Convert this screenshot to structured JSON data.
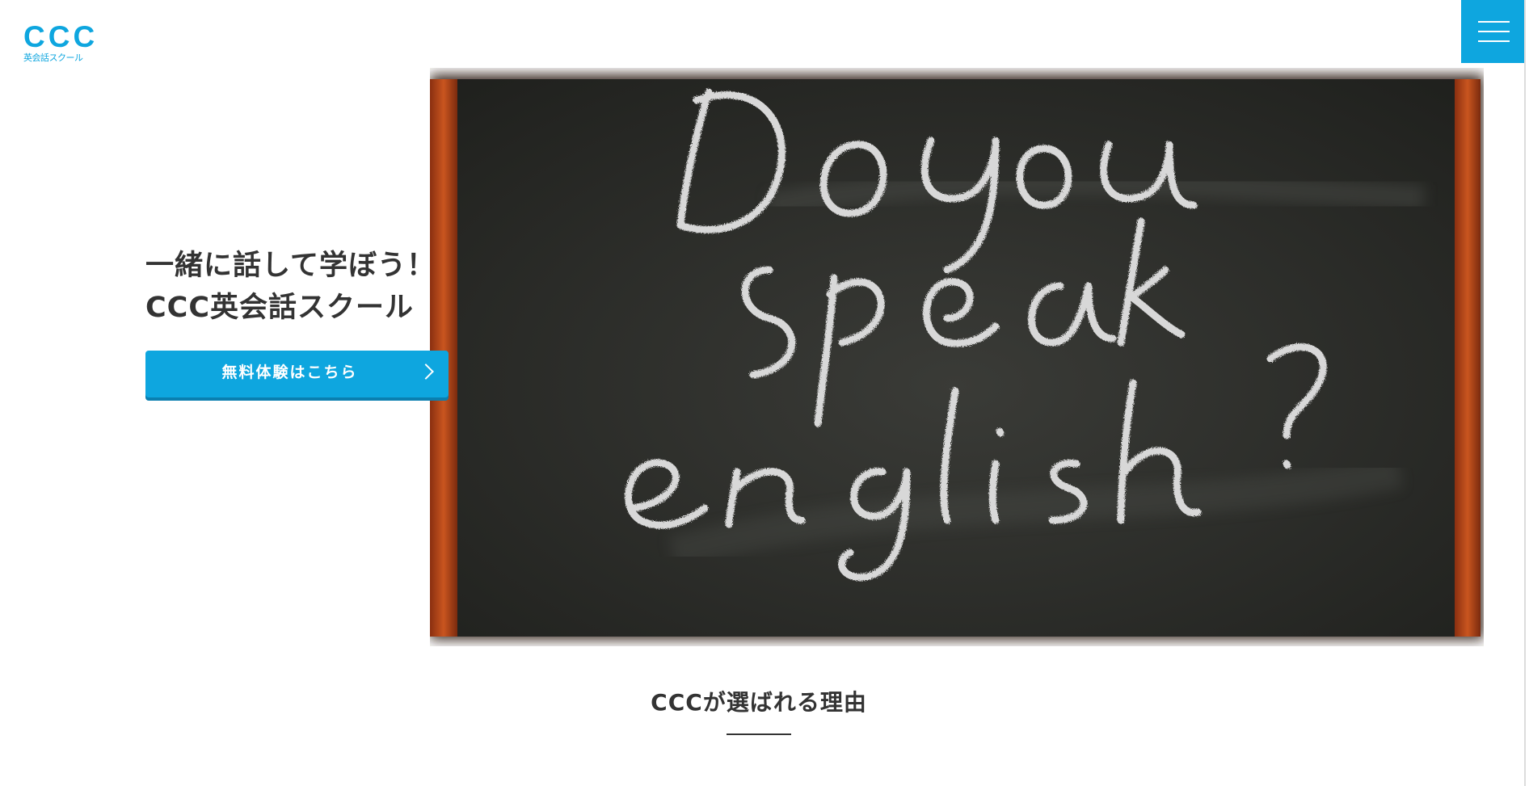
{
  "header": {
    "logo_mark": "CCC",
    "logo_sub": "英会話スクール",
    "menu_icon": "hamburger-icon"
  },
  "hero": {
    "line1": "一緒に話して学ぼう！",
    "line2": "CCC英会話スクール",
    "cta_label": "無料体験はこちら",
    "cta_icon": "chevron-right-icon",
    "image": {
      "description_icon": "chalkboard-image",
      "chalk_lines": [
        "Do you",
        "speak",
        "english ?"
      ]
    }
  },
  "section": {
    "title": "CCCが選ばれる理由"
  },
  "colors": {
    "accent": "#0ea6df",
    "text": "#333333",
    "board": "#2b2c29",
    "frame": "#b2471c"
  }
}
